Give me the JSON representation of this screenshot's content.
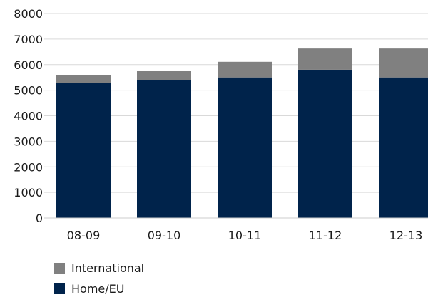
{
  "chart_data": {
    "type": "bar",
    "stacked": true,
    "categories": [
      "08-09",
      "09-10",
      "10-11",
      "11-12",
      "12-13"
    ],
    "series": [
      {
        "name": "Home/EU",
        "color": "#00234b",
        "values": [
          5270,
          5380,
          5500,
          5800,
          5500
        ]
      },
      {
        "name": "International",
        "color": "#808080",
        "values": [
          310,
          390,
          610,
          830,
          1130
        ]
      }
    ],
    "ylim": [
      0,
      8000
    ],
    "yticks": [
      0,
      1000,
      2000,
      3000,
      4000,
      5000,
      6000,
      7000,
      8000
    ],
    "grid": true,
    "legend_position": "bottom-left",
    "title": "",
    "xlabel": "",
    "ylabel": ""
  }
}
